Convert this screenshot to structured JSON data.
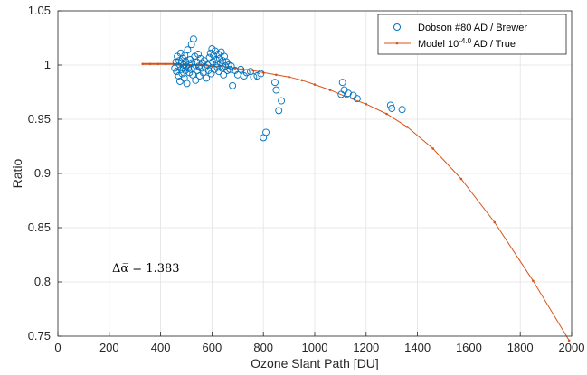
{
  "chart_data": {
    "type": "scatter",
    "xlabel": "Ozone Slant Path [DU]",
    "ylabel": "Ratio",
    "xlim": [
      0,
      2000
    ],
    "ylim": [
      0.75,
      1.05
    ],
    "x_ticks": [
      "0",
      "200",
      "400",
      "600",
      "800",
      "1000",
      "1200",
      "1400",
      "1600",
      "1800",
      "2000"
    ],
    "y_ticks": [
      "0.75",
      "0.8",
      "0.85",
      "0.9",
      "0.95",
      "1",
      "1.05"
    ],
    "grid": true,
    "legend_position": "top-right",
    "annotation": "Δα̅ = 1.383",
    "series": [
      {
        "name": "Dobson #80 AD / Brewer",
        "marker": "open-circle",
        "color": "#0072BD",
        "points": [
          [
            455,
            0.997
          ],
          [
            460,
            1.003
          ],
          [
            462,
            0.994
          ],
          [
            465,
            1.008
          ],
          [
            468,
            0.999
          ],
          [
            470,
            0.99
          ],
          [
            472,
            1.004
          ],
          [
            475,
            0.985
          ],
          [
            478,
            1.011
          ],
          [
            480,
            0.996
          ],
          [
            482,
            1.002
          ],
          [
            484,
            0.992
          ],
          [
            486,
            1.006
          ],
          [
            488,
            0.998
          ],
          [
            490,
            1.0
          ],
          [
            492,
            0.988
          ],
          [
            494,
            1.009
          ],
          [
            496,
            0.995
          ],
          [
            498,
            1.003
          ],
          [
            500,
            0.999
          ],
          [
            502,
            0.983
          ],
          [
            505,
            1.014
          ],
          [
            508,
            0.997
          ],
          [
            510,
            1.001
          ],
          [
            512,
            0.993
          ],
          [
            515,
            1.005
          ],
          [
            518,
            0.996
          ],
          [
            520,
            1.019
          ],
          [
            522,
            1.002
          ],
          [
            525,
            0.991
          ],
          [
            528,
            1.024
          ],
          [
            530,
            0.998
          ],
          [
            533,
            1.008
          ],
          [
            536,
            0.986
          ],
          [
            540,
            1.003
          ],
          [
            543,
            0.995
          ],
          [
            546,
            1.01
          ],
          [
            549,
            0.999
          ],
          [
            552,
            0.99
          ],
          [
            555,
            1.006
          ],
          [
            558,
            0.997
          ],
          [
            562,
            1.002
          ],
          [
            566,
            0.993
          ],
          [
            570,
            1.004
          ],
          [
            574,
            0.998
          ],
          [
            578,
            0.988
          ],
          [
            582,
            1.0
          ],
          [
            586,
            0.995
          ],
          [
            590,
            1.007
          ],
          [
            594,
            1.011
          ],
          [
            597,
            0.992
          ],
          [
            600,
            1.015
          ],
          [
            603,
            1.003
          ],
          [
            606,
            1.009
          ],
          [
            609,
            0.996
          ],
          [
            612,
            1.013
          ],
          [
            615,
            1.005
          ],
          [
            618,
            1.001
          ],
          [
            621,
            0.998
          ],
          [
            624,
            1.01
          ],
          [
            627,
            0.994
          ],
          [
            630,
            1.006
          ],
          [
            633,
            1.002
          ],
          [
            636,
            1.012
          ],
          [
            639,
            0.997
          ],
          [
            642,
            1.004
          ],
          [
            645,
            0.991
          ],
          [
            648,
            1.008
          ],
          [
            652,
            0.999
          ],
          [
            656,
            1.003
          ],
          [
            660,
            0.995
          ],
          [
            665,
            1.0
          ],
          [
            670,
            0.996
          ],
          [
            675,
            0.999
          ],
          [
            680,
            0.981
          ],
          [
            690,
            0.995
          ],
          [
            700,
            0.991
          ],
          [
            712,
            0.996
          ],
          [
            725,
            0.99
          ],
          [
            735,
            0.993
          ],
          [
            750,
            0.994
          ],
          [
            762,
            0.989
          ],
          [
            776,
            0.99
          ],
          [
            790,
            0.992
          ],
          [
            800,
            0.933
          ],
          [
            810,
            0.938
          ],
          [
            845,
            0.984
          ],
          [
            850,
            0.977
          ],
          [
            860,
            0.958
          ],
          [
            870,
            0.967
          ],
          [
            1103,
            0.973
          ],
          [
            1108,
            0.984
          ],
          [
            1115,
            0.977
          ],
          [
            1130,
            0.974
          ],
          [
            1150,
            0.972
          ],
          [
            1165,
            0.969
          ],
          [
            1295,
            0.963
          ],
          [
            1300,
            0.96
          ],
          [
            1340,
            0.959
          ]
        ]
      },
      {
        "name": "Model 10^-4.0 AD / True",
        "marker": "line-dot",
        "color": "#D95319",
        "points": [
          [
            330,
            1.001
          ],
          [
            360,
            1.001
          ],
          [
            390,
            1.001
          ],
          [
            420,
            1.001
          ],
          [
            450,
            1.001
          ],
          [
            480,
            1.0
          ],
          [
            510,
            1.0
          ],
          [
            540,
            1.0
          ],
          [
            570,
            1.0
          ],
          [
            600,
            0.999
          ],
          [
            630,
            0.999
          ],
          [
            660,
            0.998
          ],
          [
            690,
            0.997
          ],
          [
            720,
            0.996
          ],
          [
            760,
            0.995
          ],
          [
            800,
            0.993
          ],
          [
            850,
            0.991
          ],
          [
            900,
            0.989
          ],
          [
            950,
            0.986
          ],
          [
            1000,
            0.982
          ],
          [
            1060,
            0.977
          ],
          [
            1120,
            0.971
          ],
          [
            1200,
            0.964
          ],
          [
            1280,
            0.955
          ],
          [
            1360,
            0.943
          ],
          [
            1460,
            0.923
          ],
          [
            1570,
            0.895
          ],
          [
            1700,
            0.855
          ],
          [
            1850,
            0.801
          ],
          [
            1990,
            0.746
          ]
        ]
      }
    ]
  }
}
